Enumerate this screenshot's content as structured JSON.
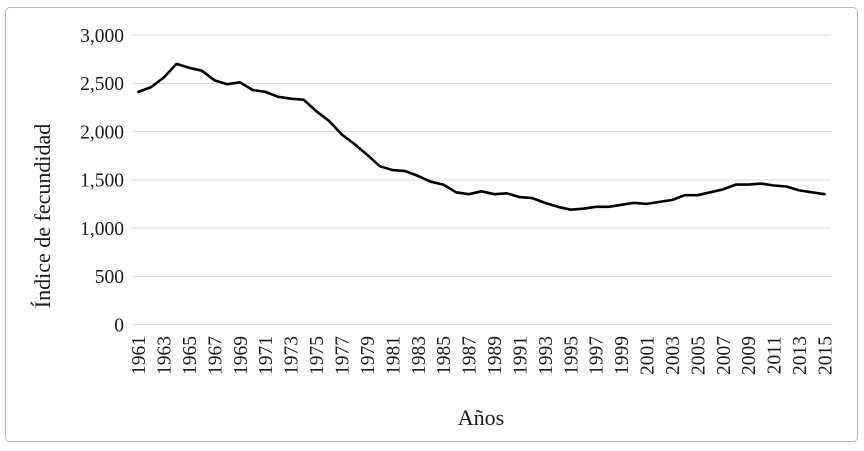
{
  "figure": {
    "type_label": "line-chart-figure"
  },
  "chart_data": {
    "type": "line",
    "title": "",
    "xlabel": "Años",
    "ylabel": "Índice de fecundidad",
    "x": [
      1961,
      1962,
      1963,
      1964,
      1965,
      1966,
      1967,
      1968,
      1969,
      1970,
      1971,
      1972,
      1973,
      1974,
      1975,
      1976,
      1977,
      1978,
      1979,
      1980,
      1981,
      1982,
      1983,
      1984,
      1985,
      1986,
      1987,
      1988,
      1989,
      1990,
      1991,
      1992,
      1993,
      1994,
      1995,
      1996,
      1997,
      1998,
      1999,
      2000,
      2001,
      2002,
      2003,
      2004,
      2005,
      2006,
      2007,
      2008,
      2009,
      2010,
      2011,
      2012,
      2013,
      2014,
      2015
    ],
    "series": [
      {
        "name": "Índice de fecundidad",
        "values": [
          2410,
          2460,
          2560,
          2700,
          2660,
          2630,
          2530,
          2490,
          2510,
          2430,
          2410,
          2360,
          2340,
          2330,
          2210,
          2110,
          1970,
          1870,
          1760,
          1640,
          1600,
          1590,
          1540,
          1480,
          1450,
          1370,
          1350,
          1380,
          1350,
          1360,
          1320,
          1310,
          1260,
          1220,
          1190,
          1200,
          1220,
          1220,
          1240,
          1260,
          1250,
          1270,
          1290,
          1340,
          1340,
          1370,
          1400,
          1450,
          1450,
          1460,
          1440,
          1430,
          1390,
          1370,
          1350
        ]
      }
    ],
    "ylim": [
      0,
      3000
    ],
    "ytick_values": [
      0,
      500,
      1000,
      1500,
      2000,
      2500,
      3000
    ],
    "ytick_labels": [
      "0",
      "500",
      "1,000",
      "1,500",
      "2,000",
      "2,500",
      "3,000"
    ],
    "xtick_labels": [
      "1961",
      "1963",
      "1965",
      "1967",
      "1969",
      "1971",
      "1973",
      "1975",
      "1977",
      "1979",
      "1981",
      "1983",
      "1985",
      "1987",
      "1989",
      "1991",
      "1993",
      "1995",
      "1997",
      "1999",
      "2001",
      "2003",
      "2005",
      "2007",
      "2009",
      "2011",
      "2013",
      "2015"
    ],
    "xtick_every": 2,
    "grid": "horizontal",
    "gridline_color": "#d9d9d9",
    "line_color": "#000000",
    "line_width": 2.6,
    "text_color": "#1a1a1a",
    "border_color": "#b9b9b9",
    "legend_position": "none"
  }
}
